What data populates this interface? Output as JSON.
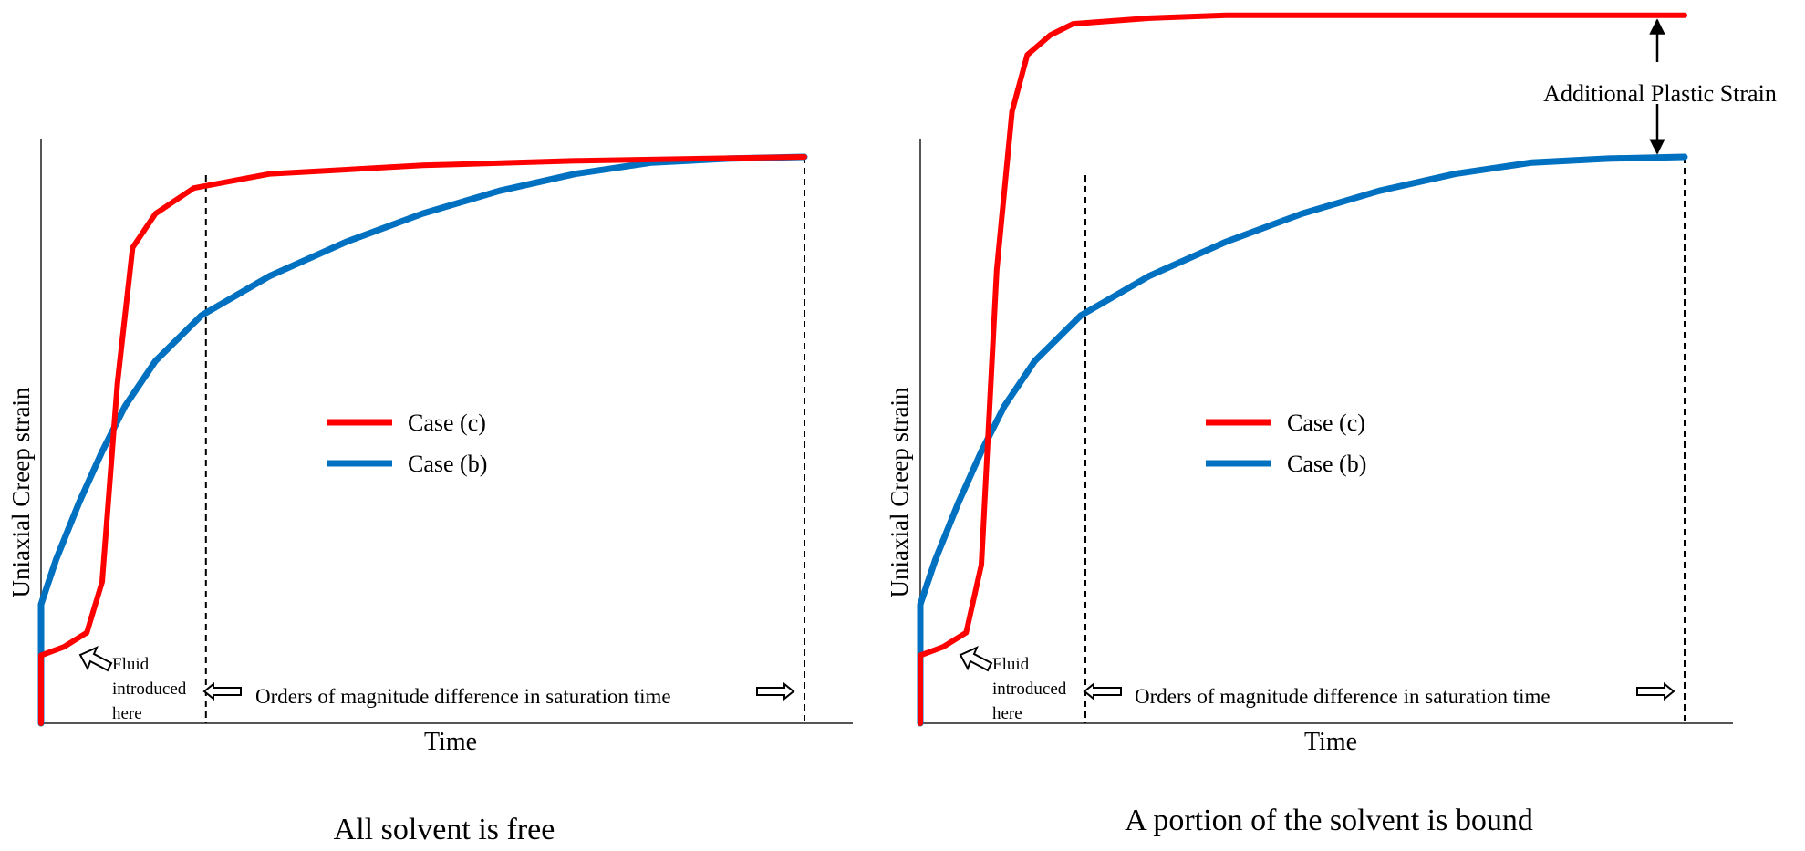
{
  "chart_data": [
    {
      "type": "line",
      "title": "All solvent is free",
      "xlabel": "Time",
      "ylabel": "Uniaxial Creep strain",
      "axis_ticks": false,
      "grid": false,
      "legend_position": "center",
      "series": [
        {
          "name": "Case (c)",
          "color": "#ff0000",
          "points": [
            [
              0,
              0
            ],
            [
              0,
              0.12
            ],
            [
              0.03,
              0.135
            ],
            [
              0.06,
              0.16
            ],
            [
              0.08,
              0.25
            ],
            [
              0.1,
              0.6
            ],
            [
              0.12,
              0.84
            ],
            [
              0.15,
              0.9
            ],
            [
              0.2,
              0.945
            ],
            [
              0.3,
              0.97
            ],
            [
              0.5,
              0.985
            ],
            [
              0.7,
              0.993
            ],
            [
              1,
              1
            ]
          ]
        },
        {
          "name": "Case (b)",
          "color": "#0070c0",
          "points": [
            [
              0,
              0
            ],
            [
              0,
              0.21
            ],
            [
              0.02,
              0.29
            ],
            [
              0.05,
              0.39
            ],
            [
              0.08,
              0.48
            ],
            [
              0.11,
              0.56
            ],
            [
              0.15,
              0.64
            ],
            [
              0.21,
              0.72
            ],
            [
              0.3,
              0.79
            ],
            [
              0.4,
              0.85
            ],
            [
              0.5,
              0.9
            ],
            [
              0.6,
              0.94
            ],
            [
              0.7,
              0.97
            ],
            [
              0.8,
              0.99
            ],
            [
              0.9,
              0.997
            ],
            [
              1,
              1
            ]
          ]
        }
      ],
      "vlines": [
        0.216,
        1.0
      ],
      "annotations": {
        "fluid_line1": "Fluid",
        "fluid_line2": "introduced",
        "fluid_line3": "here",
        "orders": "Orders of magnitude difference in saturation time"
      }
    },
    {
      "type": "line",
      "title": "A portion of the solvent is bound",
      "xlabel": "Time",
      "ylabel": "Uniaxial Creep strain",
      "axis_ticks": false,
      "grid": false,
      "legend_position": "center",
      "series": [
        {
          "name": "Case (c)",
          "color": "#ff0000",
          "points": [
            [
              0,
              0
            ],
            [
              0,
              0.12
            ],
            [
              0.03,
              0.135
            ],
            [
              0.06,
              0.16
            ],
            [
              0.08,
              0.28
            ],
            [
              0.1,
              0.8
            ],
            [
              0.12,
              1.08
            ],
            [
              0.14,
              1.18
            ],
            [
              0.17,
              1.215
            ],
            [
              0.2,
              1.235
            ],
            [
              0.3,
              1.245
            ],
            [
              0.4,
              1.25
            ],
            [
              1,
              1.25
            ]
          ]
        },
        {
          "name": "Case (b)",
          "color": "#0070c0",
          "points": [
            [
              0,
              0
            ],
            [
              0,
              0.21
            ],
            [
              0.02,
              0.29
            ],
            [
              0.05,
              0.39
            ],
            [
              0.08,
              0.48
            ],
            [
              0.11,
              0.56
            ],
            [
              0.15,
              0.64
            ],
            [
              0.21,
              0.72
            ],
            [
              0.3,
              0.79
            ],
            [
              0.4,
              0.85
            ],
            [
              0.5,
              0.9
            ],
            [
              0.6,
              0.94
            ],
            [
              0.7,
              0.97
            ],
            [
              0.8,
              0.99
            ],
            [
              0.9,
              0.997
            ],
            [
              1,
              1
            ]
          ]
        }
      ],
      "vlines": [
        0.216,
        1.0
      ],
      "annotations": {
        "fluid_line1": "Fluid",
        "fluid_line2": "introduced",
        "fluid_line3": "here",
        "orders": "Orders of magnitude difference in saturation time",
        "additional": "Additional Plastic Strain"
      }
    }
  ]
}
